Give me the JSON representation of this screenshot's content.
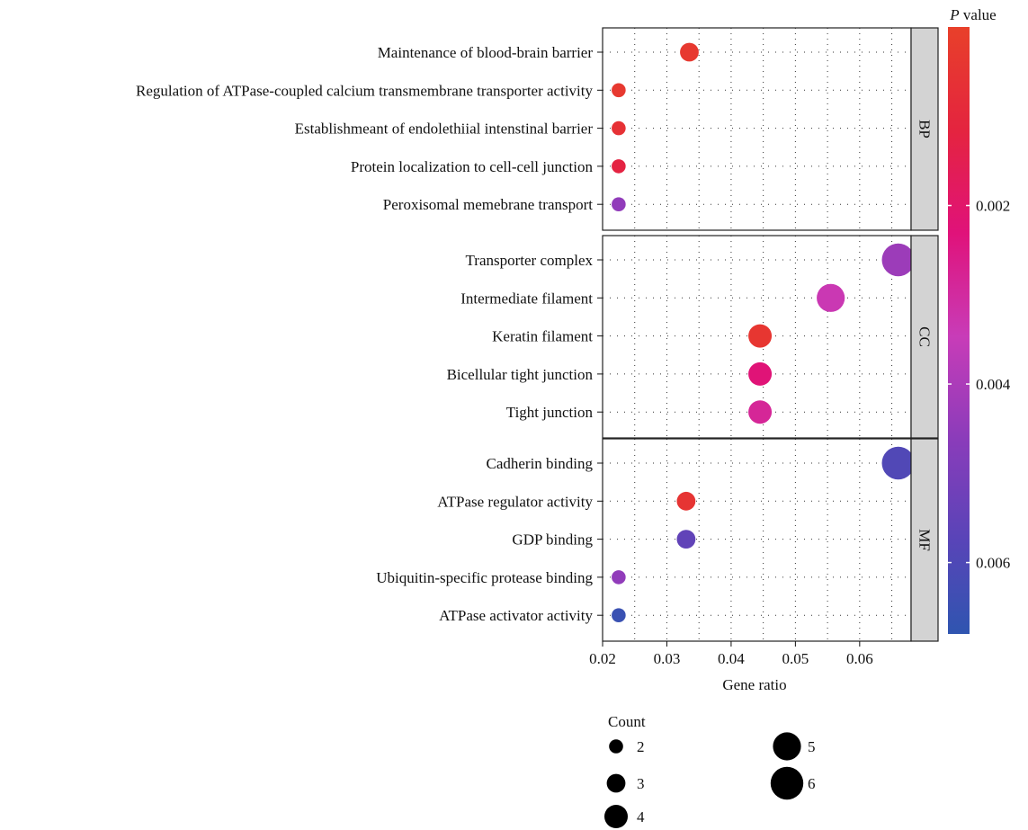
{
  "chart_data": {
    "type": "scatter",
    "xlabel": "Gene ratio",
    "xlim": [
      0.02,
      0.068
    ],
    "x_ticks": [
      "0.02",
      "0.03",
      "0.04",
      "0.05",
      "0.06"
    ],
    "panels": [
      {
        "name": "BP",
        "points": [
          {
            "term": "Maintenance of blood-brain barrier",
            "gene_ratio": 0.0335,
            "count": 3,
            "p_value": 0.0003
          },
          {
            "term": "Regulation of ATPase-coupled calcium transmembrane transporter activity",
            "gene_ratio": 0.0225,
            "count": 2,
            "p_value": 0.0003
          },
          {
            "term": "Establishmeant of endolethiial intenstinal barrier",
            "gene_ratio": 0.0225,
            "count": 2,
            "p_value": 0.0006
          },
          {
            "term": "Protein localization to cell-cell junction",
            "gene_ratio": 0.0225,
            "count": 2,
            "p_value": 0.0012
          },
          {
            "term": "Peroxisomal memebrane transport",
            "gene_ratio": 0.0225,
            "count": 2,
            "p_value": 0.0044
          }
        ]
      },
      {
        "name": "CC",
        "points": [
          {
            "term": "Transporter complex",
            "gene_ratio": 0.066,
            "count": 6,
            "p_value": 0.0042
          },
          {
            "term": "Intermediate filament",
            "gene_ratio": 0.0555,
            "count": 5,
            "p_value": 0.0033
          },
          {
            "term": "Keratin filament",
            "gene_ratio": 0.0445,
            "count": 4,
            "p_value": 0.0004
          },
          {
            "term": "Bicellular tight junction",
            "gene_ratio": 0.0445,
            "count": 4,
            "p_value": 0.0022
          },
          {
            "term": "Tight junction",
            "gene_ratio": 0.0445,
            "count": 4,
            "p_value": 0.0028
          }
        ]
      },
      {
        "name": "MF",
        "points": [
          {
            "term": "Cadherin binding",
            "gene_ratio": 0.066,
            "count": 6,
            "p_value": 0.0059
          },
          {
            "term": "ATPase regulator activity",
            "gene_ratio": 0.033,
            "count": 3,
            "p_value": 0.0005
          },
          {
            "term": "GDP binding",
            "gene_ratio": 0.033,
            "count": 3,
            "p_value": 0.0055
          },
          {
            "term": "Ubiquitin-specific protease binding",
            "gene_ratio": 0.0225,
            "count": 2,
            "p_value": 0.0044
          },
          {
            "term": "ATPase activator activity",
            "gene_ratio": 0.0225,
            "count": 2,
            "p_value": 0.0065
          }
        ]
      }
    ],
    "color_legend": {
      "title_italic": "P",
      "title_rest": " value",
      "range": [
        0.0,
        0.0068
      ],
      "ticks": [
        {
          "value": 0.002,
          "label": "0.002"
        },
        {
          "value": 0.004,
          "label": "0.004"
        },
        {
          "value": 0.006,
          "label": "0.006"
        }
      ],
      "colors": [
        "#e8402a",
        "#e4243f",
        "#e0127a",
        "#c83cb8",
        "#8a3cba",
        "#5a44b8",
        "#2f55b0"
      ]
    },
    "size_legend": {
      "title": "Count",
      "items": [
        {
          "count": 2,
          "label": "2"
        },
        {
          "count": 3,
          "label": "3"
        },
        {
          "count": 4,
          "label": "4"
        },
        {
          "count": 5,
          "label": "5"
        },
        {
          "count": 6,
          "label": "6"
        }
      ]
    },
    "grid": true
  }
}
